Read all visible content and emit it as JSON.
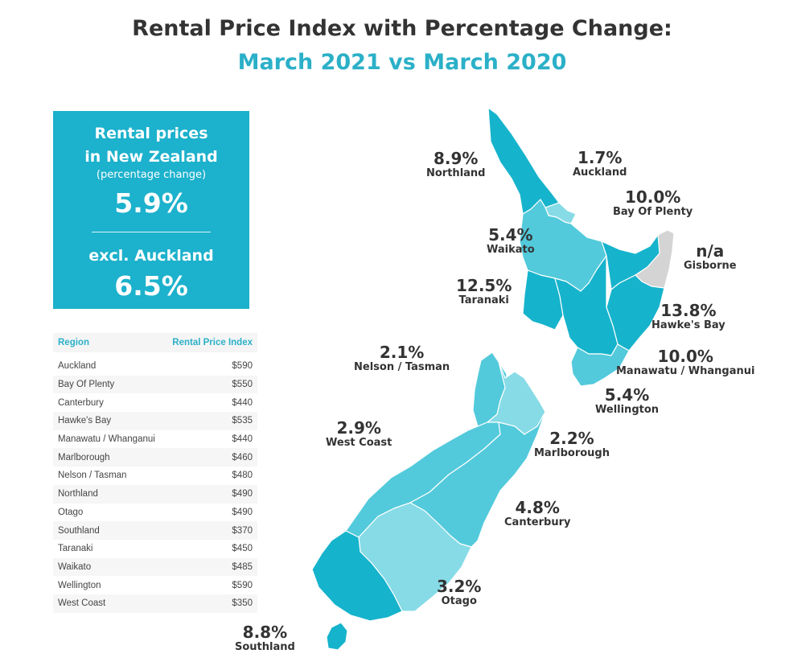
{
  "title": "Rental Price Index with Percentage Change:",
  "subtitle": "March 2021 vs March 2020",
  "summary": {
    "line1": "Rental prices",
    "line2": "in New Zealand",
    "line3": "(percentage change)",
    "value_all": "5.9%",
    "line4": "excl. Auckland",
    "value_excl": "6.5%"
  },
  "table": {
    "col_region": "Region",
    "col_index": "Rental Price Index",
    "rows": [
      {
        "region": "Auckland",
        "index": "$590"
      },
      {
        "region": "Bay Of Plenty",
        "index": "$550"
      },
      {
        "region": "Canterbury",
        "index": "$440"
      },
      {
        "region": "Hawke's Bay",
        "index": "$535"
      },
      {
        "region": "Manawatu / Whanganui",
        "index": "$440"
      },
      {
        "region": "Marlborough",
        "index": "$460"
      },
      {
        "region": "Nelson / Tasman",
        "index": "$480"
      },
      {
        "region": "Northland",
        "index": "$490"
      },
      {
        "region": "Otago",
        "index": "$490"
      },
      {
        "region": "Southland",
        "index": "$370"
      },
      {
        "region": "Taranaki",
        "index": "$450"
      },
      {
        "region": "Waikato",
        "index": "$485"
      },
      {
        "region": "Wellington",
        "index": "$590"
      },
      {
        "region": "West Coast",
        "index": "$350"
      }
    ]
  },
  "map_labels": {
    "northland": {
      "pct": "8.9%",
      "name": "Northland"
    },
    "auckland": {
      "pct": "1.7%",
      "name": "Auckland"
    },
    "bay_of_plenty": {
      "pct": "10.0%",
      "name": "Bay Of Plenty"
    },
    "waikato": {
      "pct": "5.4%",
      "name": "Waikato"
    },
    "gisborne": {
      "pct": "n/a",
      "name": "Gisborne"
    },
    "taranaki": {
      "pct": "12.5%",
      "name": "Taranaki"
    },
    "hawkes_bay": {
      "pct": "13.8%",
      "name": "Hawke's Bay"
    },
    "nelson_tasman": {
      "pct": "2.1%",
      "name": "Nelson / Tasman"
    },
    "manawatu": {
      "pct": "10.0%",
      "name": "Manawatu / Whanganui"
    },
    "wellington": {
      "pct": "5.4%",
      "name": "Wellington"
    },
    "west_coast": {
      "pct": "2.9%",
      "name": "West Coast"
    },
    "marlborough": {
      "pct": "2.2%",
      "name": "Marlborough"
    },
    "canterbury": {
      "pct": "4.8%",
      "name": "Canterbury"
    },
    "otago": {
      "pct": "3.2%",
      "name": "Otago"
    },
    "southland": {
      "pct": "8.8%",
      "name": "Southland"
    }
  },
  "colors": {
    "dark": "#16b3cc",
    "medium": "#52cadb",
    "light": "#86dbe6",
    "na": "#d4d4d4",
    "accent": "#2bb0c8"
  }
}
